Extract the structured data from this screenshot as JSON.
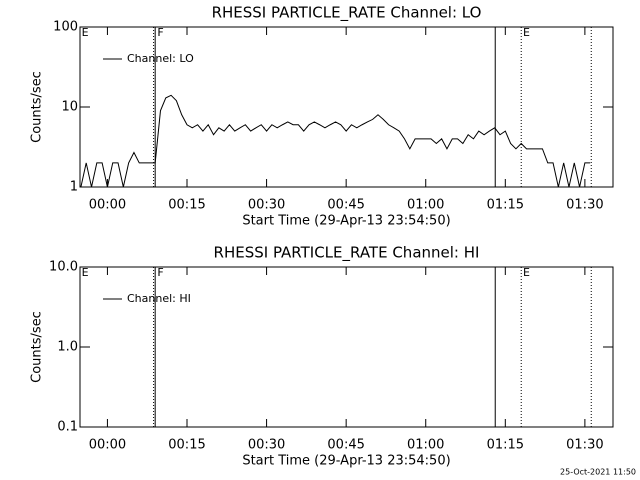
{
  "chart_data": [
    {
      "type": "line",
      "title": "RHESSI PARTICLE_RATE Channel: LO",
      "xlabel": "Start Time (29-Apr-13 23:54:50)",
      "ylabel": "Counts/sec",
      "log_y": true,
      "legend": "upper left",
      "xlim": [
        -5.17,
        95.3
      ],
      "ylim": [
        1,
        100
      ],
      "xticks": [
        {
          "value": 0,
          "label": "00:00"
        },
        {
          "value": 15,
          "label": "00:15"
        },
        {
          "value": 30,
          "label": "00:30"
        },
        {
          "value": 45,
          "label": "00:45"
        },
        {
          "value": 60,
          "label": "01:00"
        },
        {
          "value": 75,
          "label": "01:15"
        },
        {
          "value": 90,
          "label": "01:30"
        }
      ],
      "yticks": [
        1,
        10,
        100
      ],
      "markers": [
        {
          "x": 8.7,
          "style": "dotted"
        },
        {
          "x": 9.0,
          "style": "solid"
        },
        {
          "x": 73.1,
          "style": "solid"
        },
        {
          "x": 78.0,
          "style": "dotted"
        },
        {
          "x": 91.2,
          "style": "dotted"
        }
      ],
      "annotations": [
        {
          "text": "E",
          "x": -4.2
        },
        {
          "text": "F",
          "x": 10.0
        },
        {
          "text": "E",
          "x": 79.0
        }
      ],
      "series": [
        {
          "name": "Channel: LO",
          "color": "#000000",
          "x": [
            -5,
            -4,
            -3,
            -2,
            -1,
            0,
            1,
            2,
            3,
            4,
            5,
            6,
            7,
            8,
            9,
            10,
            11,
            12,
            13,
            14,
            15,
            16,
            17,
            18,
            19,
            20,
            21,
            22,
            23,
            24,
            25,
            26,
            27,
            28,
            29,
            30,
            31,
            32,
            33,
            34,
            35,
            36,
            37,
            38,
            39,
            40,
            41,
            42,
            43,
            44,
            45,
            46,
            47,
            48,
            49,
            50,
            51,
            52,
            53,
            54,
            55,
            56,
            57,
            58,
            59,
            60,
            61,
            62,
            63,
            64,
            65,
            66,
            67,
            68,
            69,
            70,
            71,
            72,
            73,
            74,
            75,
            76,
            77,
            78,
            79,
            80,
            81,
            82,
            83,
            84,
            85,
            86,
            87,
            88,
            89,
            90,
            91
          ],
          "values": [
            1,
            2,
            1,
            2,
            2,
            1,
            2,
            2,
            1,
            2,
            2.7,
            2,
            2,
            2,
            2,
            9,
            13,
            14,
            12,
            8,
            6,
            5.5,
            6,
            5,
            6,
            4.5,
            5.5,
            5,
            6,
            5,
            5.5,
            6,
            5,
            5.5,
            6,
            5,
            6,
            5.5,
            6,
            6.5,
            6,
            6,
            5,
            6,
            6.5,
            6,
            5.5,
            6,
            6.5,
            6,
            5,
            6,
            5.5,
            6,
            6.5,
            7,
            8,
            7,
            6,
            5.5,
            5,
            4,
            3,
            4,
            4,
            4,
            4,
            3.5,
            4,
            3,
            4,
            4,
            3.5,
            4.5,
            4,
            5,
            4.5,
            5,
            5.5,
            4.5,
            5,
            3.5,
            3,
            3.5,
            3,
            3,
            3,
            3,
            2,
            2,
            1,
            2,
            1,
            2,
            1,
            2,
            2
          ]
        }
      ]
    },
    {
      "type": "line",
      "title": "RHESSI PARTICLE_RATE Channel: HI",
      "xlabel": "Start Time (29-Apr-13 23:54:50)",
      "ylabel": "Counts/sec",
      "log_y": true,
      "legend": "upper left",
      "xlim": [
        -5.17,
        95.3
      ],
      "ylim": [
        0.1,
        10
      ],
      "xticks": [
        {
          "value": 0,
          "label": "00:00"
        },
        {
          "value": 15,
          "label": "00:15"
        },
        {
          "value": 30,
          "label": "00:30"
        },
        {
          "value": 45,
          "label": "00:45"
        },
        {
          "value": 60,
          "label": "01:00"
        },
        {
          "value": 75,
          "label": "01:15"
        },
        {
          "value": 90,
          "label": "01:30"
        }
      ],
      "yticks": [
        {
          "value": 0.1,
          "label": "0.1"
        },
        {
          "value": 1,
          "label": "1.0"
        },
        {
          "value": 10,
          "label": "10.0"
        }
      ],
      "markers": [
        {
          "x": 8.7,
          "style": "dotted"
        },
        {
          "x": 9.0,
          "style": "solid"
        },
        {
          "x": 73.1,
          "style": "solid"
        },
        {
          "x": 78.0,
          "style": "dotted"
        },
        {
          "x": 91.2,
          "style": "dotted"
        }
      ],
      "annotations": [
        {
          "text": "E",
          "x": -4.2
        },
        {
          "text": "F",
          "x": 10.0
        },
        {
          "text": "E",
          "x": 79.0
        }
      ],
      "series": [
        {
          "name": "Channel: HI",
          "color": "#000000",
          "x": [],
          "values": []
        }
      ]
    }
  ],
  "footer": "25-Oct-2021 11:50"
}
